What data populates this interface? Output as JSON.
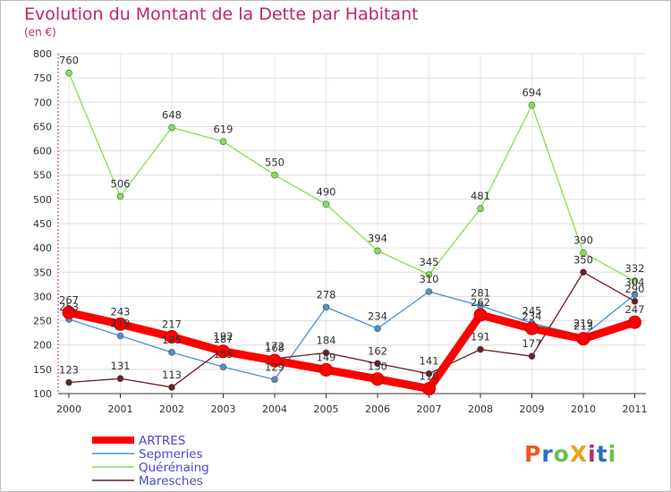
{
  "chart_data": {
    "type": "line",
    "title": "Evolution du Montant de la Dette par Habitant",
    "subtitle": "(en €)",
    "categories": [
      "2000",
      "2001",
      "2002",
      "2003",
      "2004",
      "2005",
      "2006",
      "2007",
      "2008",
      "2009",
      "2010",
      "2011"
    ],
    "ylim": [
      100,
      800
    ],
    "yticks": [
      100,
      150,
      200,
      250,
      300,
      350,
      400,
      450,
      500,
      550,
      600,
      650,
      700,
      750,
      800
    ],
    "grid": true,
    "legend_position": "bottom-left",
    "series": [
      {
        "name": "ARTRES",
        "color": "#ff0000",
        "values": [
          267,
          243,
          217,
          187,
          168,
          149,
          130,
          110,
          262,
          234,
          213,
          247
        ]
      },
      {
        "name": "Sepmeries",
        "color": "#4a90d0",
        "values": [
          253,
          219,
          185,
          155,
          129,
          278,
          234,
          310,
          281,
          245,
          219,
          304
        ]
      },
      {
        "name": "Quérénaing",
        "color": "#88dd55",
        "values": [
          760,
          506,
          648,
          619,
          550,
          490,
          394,
          345,
          481,
          694,
          390,
          332
        ]
      },
      {
        "name": "Maresches",
        "color": "#6a1f24",
        "values": [
          123,
          131,
          113,
          192,
          172,
          184,
          162,
          141,
          191,
          177,
          350,
          290
        ]
      }
    ]
  },
  "logo": {
    "text": "ProXiti",
    "letters": [
      {
        "ch": "P",
        "color": "#e85d1c"
      },
      {
        "ch": "r",
        "color": "#2b6fc4"
      },
      {
        "ch": "o",
        "color": "#6cc04a"
      },
      {
        "ch": "X",
        "color": "#e8a11c"
      },
      {
        "ch": "i",
        "color": "#c0246f"
      },
      {
        "ch": "t",
        "color": "#2b6fc4"
      },
      {
        "ch": "i",
        "color": "#6cc04a"
      }
    ]
  }
}
